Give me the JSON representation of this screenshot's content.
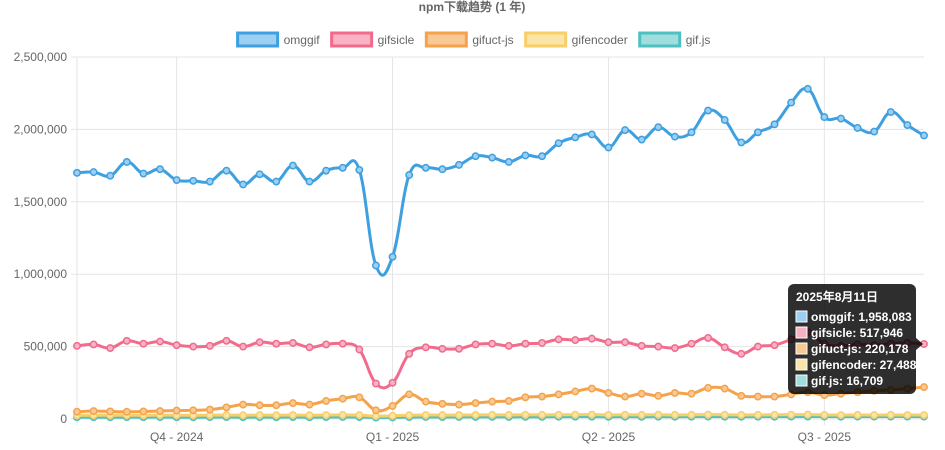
{
  "chart_data": {
    "type": "line",
    "title": "npm下载趋势 (1 年)",
    "ylim": [
      0,
      2500000
    ],
    "yticks": [
      "2,500,000",
      "2,000,000",
      "1,500,000",
      "1,000,000",
      "500,000",
      "0"
    ],
    "ytick_values": [
      2500000,
      2000000,
      1500000,
      1000000,
      500000,
      0
    ],
    "xticks": [
      "Q4 - 2024",
      "Q1 - 2025",
      "Q2 - 2025",
      "Q3 - 2025"
    ],
    "xtick_positions": [
      6,
      19,
      32,
      45
    ],
    "grid": true,
    "legend_position": "top",
    "series": [
      {
        "name": "omggif",
        "color": "#3ea0e0",
        "fill": "#9ccff2",
        "values": [
          1700000,
          1705000,
          1680000,
          1775000,
          1695000,
          1725000,
          1650000,
          1645000,
          1640000,
          1715000,
          1620000,
          1690000,
          1640000,
          1750000,
          1640000,
          1715000,
          1735000,
          1720000,
          1060000,
          1120000,
          1685000,
          1735000,
          1725000,
          1755000,
          1815000,
          1805000,
          1775000,
          1820000,
          1815000,
          1905000,
          1945000,
          1965000,
          1875000,
          1995000,
          1930000,
          2015000,
          1950000,
          1980000,
          2130000,
          2065000,
          1910000,
          1980000,
          2035000,
          2185000,
          2280000,
          2085000,
          2075000,
          2010000,
          1985000,
          2120000,
          2030000,
          1958083
        ]
      },
      {
        "name": "gifsicle",
        "color": "#f06b8c",
        "fill": "#f7b3c3",
        "values": [
          505000,
          515000,
          490000,
          540000,
          520000,
          535000,
          510000,
          500000,
          505000,
          540000,
          500000,
          530000,
          520000,
          525000,
          495000,
          515000,
          520000,
          480000,
          245000,
          250000,
          450000,
          495000,
          485000,
          485000,
          515000,
          520000,
          505000,
          520000,
          525000,
          550000,
          545000,
          555000,
          530000,
          530000,
          505000,
          500000,
          490000,
          520000,
          560000,
          495000,
          450000,
          500000,
          510000,
          550000,
          600000,
          520000,
          505000,
          515000,
          510000,
          520000,
          525000,
          517946
        ]
      },
      {
        "name": "gifuct-js",
        "color": "#f4a34b",
        "fill": "#f9c995",
        "values": [
          50000,
          55000,
          52000,
          50000,
          52000,
          55000,
          58000,
          60000,
          65000,
          80000,
          100000,
          95000,
          95000,
          110000,
          100000,
          125000,
          140000,
          150000,
          60000,
          90000,
          170000,
          120000,
          105000,
          100000,
          110000,
          120000,
          125000,
          150000,
          155000,
          170000,
          190000,
          210000,
          180000,
          155000,
          175000,
          160000,
          180000,
          175000,
          215000,
          210000,
          160000,
          155000,
          155000,
          170000,
          185000,
          165000,
          175000,
          185000,
          195000,
          200000,
          210000,
          220178
        ]
      },
      {
        "name": "gifencoder",
        "color": "#f7ce68",
        "fill": "#fae5a6",
        "values": [
          25000,
          26000,
          25500,
          26000,
          25000,
          27000,
          26000,
          25500,
          26500,
          27000,
          26000,
          27500,
          26000,
          27000,
          26000,
          27500,
          28000,
          27000,
          20000,
          22000,
          26000,
          27500,
          27000,
          27000,
          28000,
          28500,
          28000,
          29000,
          28500,
          29000,
          29500,
          30000,
          28000,
          29000,
          28500,
          29500,
          28000,
          29000,
          30000,
          29000,
          28000,
          28500,
          29000,
          30000,
          30500,
          28000,
          27500,
          28000,
          27000,
          28000,
          27500,
          27488
        ]
      },
      {
        "name": "gif.js",
        "color": "#4ec0c0",
        "fill": "#a0dddd",
        "values": [
          12000,
          12500,
          12000,
          13000,
          12500,
          13000,
          12500,
          12000,
          13000,
          13500,
          12500,
          13000,
          12500,
          13500,
          12500,
          13500,
          14000,
          13500,
          10000,
          11000,
          13000,
          14000,
          13500,
          14000,
          14500,
          15000,
          14500,
          15000,
          15000,
          15500,
          16000,
          16000,
          15000,
          15500,
          15000,
          16000,
          15500,
          16000,
          16500,
          16000,
          15500,
          16000,
          16000,
          16500,
          17000,
          16500,
          16000,
          16500,
          16500,
          17000,
          16800,
          16709
        ]
      }
    ],
    "tooltip": {
      "title": "2025年8月11日",
      "index": 51,
      "lines": [
        "omggif: 1,958,083",
        "gifsicle: 517,946",
        "gifuct-js: 220,178",
        "gifencoder: 27,488",
        "gif.js: 16,709"
      ]
    }
  }
}
